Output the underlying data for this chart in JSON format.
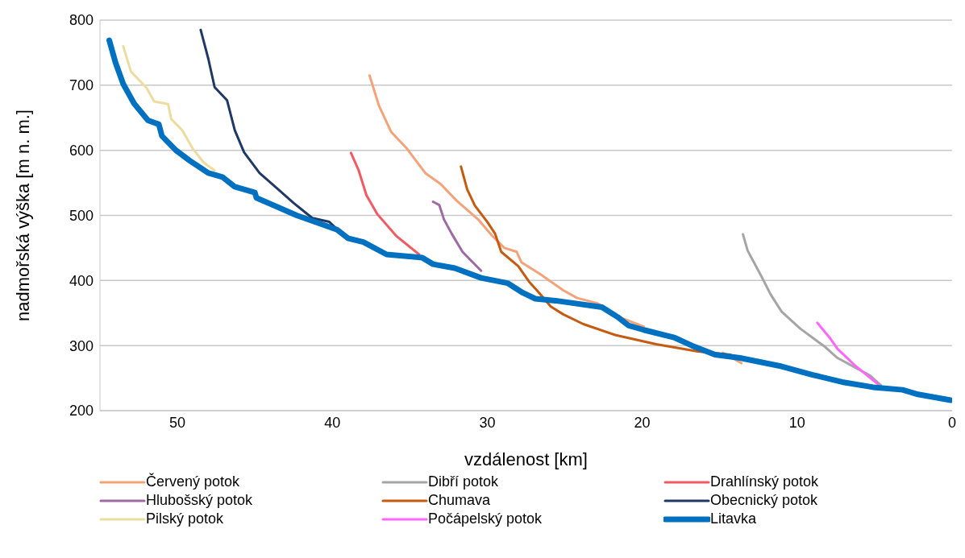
{
  "chart_data": {
    "type": "line",
    "xlabel": "vzdálenost [km]",
    "ylabel": "nadmořská výška [m n. m.]",
    "xlim": [
      55,
      0
    ],
    "xticks": [
      50,
      40,
      30,
      20,
      10,
      0
    ],
    "ylim": [
      200,
      800
    ],
    "yticks": [
      200,
      300,
      400,
      500,
      600,
      700,
      800
    ],
    "grid": "y",
    "legend": "bottom",
    "marker": "none",
    "line_style": "solid",
    "series": [
      {
        "name": "Červený potok",
        "color": "#f4a27a",
        "x": [
          37.6,
          37.0,
          36.2,
          35.2,
          34.0,
          33.0,
          32.0,
          30.6,
          29.7,
          28.9,
          28.1,
          27.8,
          26.6,
          25.1,
          24.2,
          22.9,
          21.3,
          19.9,
          16.8,
          14.8,
          13.6
        ],
        "values": [
          715,
          669,
          628,
          603,
          565,
          548,
          523,
          494,
          469,
          450,
          444,
          428,
          410,
          385,
          373,
          365,
          342,
          329,
          null,
          289,
          273
        ]
      },
      {
        "name": "Dibří potok",
        "color": "#a5a5a5",
        "x": [
          13.5,
          13.2,
          12.3,
          11.7,
          11.0,
          9.8,
          9.0,
          8.2,
          7.4,
          5.3,
          4.6
        ],
        "values": [
          471,
          446,
          406,
          378,
          352,
          326,
          312,
          298,
          281,
          254,
          239
        ]
      },
      {
        "name": "Drahlínský potok",
        "color": "#f05a64",
        "x": [
          38.8,
          38.3,
          37.8,
          37.1,
          35.9,
          34.4
        ],
        "values": [
          596,
          569,
          531,
          502,
          469,
          440
        ]
      },
      {
        "name": "Hlubošský potok",
        "color": "#9e6aa3",
        "x": [
          33.5,
          33.1,
          32.8,
          32.3,
          31.6,
          30.4
        ],
        "values": [
          521,
          516,
          494,
          472,
          444,
          415
        ]
      },
      {
        "name": "Chumava",
        "color": "#c55a11",
        "x": [
          31.7,
          31.3,
          30.8,
          30.0,
          29.5,
          29.1,
          28.0,
          27.3,
          26.8,
          25.9,
          25.1,
          23.8,
          21.7,
          19.1,
          16.4,
          14.3
        ],
        "values": [
          575,
          540,
          515,
          490,
          472,
          444,
          422,
          398,
          385,
          360,
          348,
          333,
          316,
          302,
          291,
          286
        ]
      },
      {
        "name": "Obecnický potok",
        "color": "#203864",
        "x": [
          48.5,
          48.0,
          47.6,
          46.8,
          46.3,
          45.7,
          44.7,
          43.5,
          42.5,
          41.3,
          40.2,
          39.8
        ],
        "values": [
          785,
          740,
          697,
          677,
          631,
          597,
          565,
          540,
          519,
          496,
          490,
          481
        ]
      },
      {
        "name": "Pilský potok",
        "color": "#ecdca0",
        "x": [
          53.5,
          53.0,
          52.0,
          51.5,
          50.6,
          50.4,
          49.7,
          49.0,
          48.3,
          47.6
        ],
        "values": [
          760,
          721,
          696,
          675,
          671,
          648,
          631,
          602,
          581,
          569
        ]
      },
      {
        "name": "Počápelský potok",
        "color": "#ff66ff",
        "x": [
          8.7,
          7.9,
          7.4,
          6.3,
          4.8
        ],
        "values": [
          335,
          312,
          295,
          270,
          241
        ]
      },
      {
        "name": "Litavka",
        "color": "#0070c0",
        "x": [
          54.4,
          54.0,
          53.5,
          52.8,
          51.9,
          51.2,
          51.0,
          50.1,
          49.2,
          48.0,
          47.1,
          46.3,
          45.0,
          44.9,
          42.3,
          39.7,
          39.0,
          38.0,
          36.5,
          34.2,
          33.5,
          32.1,
          30.4,
          28.7,
          27.7,
          26.9,
          25.6,
          22.6,
          21.6,
          20.9,
          19.9,
          17.9,
          16.8,
          15.3,
          13.7,
          11.0,
          9.0,
          7.1,
          5.1,
          3.2,
          2.2,
          0.1
        ],
        "values": [
          769,
          735,
          702,
          672,
          646,
          640,
          622,
          600,
          584,
          565,
          559,
          544,
          535,
          527,
          500,
          478,
          465,
          459,
          440,
          435,
          425,
          419,
          404,
          396,
          381,
          372,
          369,
          359,
          344,
          331,
          324,
          312,
          300,
          286,
          281,
          268,
          255,
          244,
          236,
          232,
          225,
          216
        ]
      }
    ]
  }
}
